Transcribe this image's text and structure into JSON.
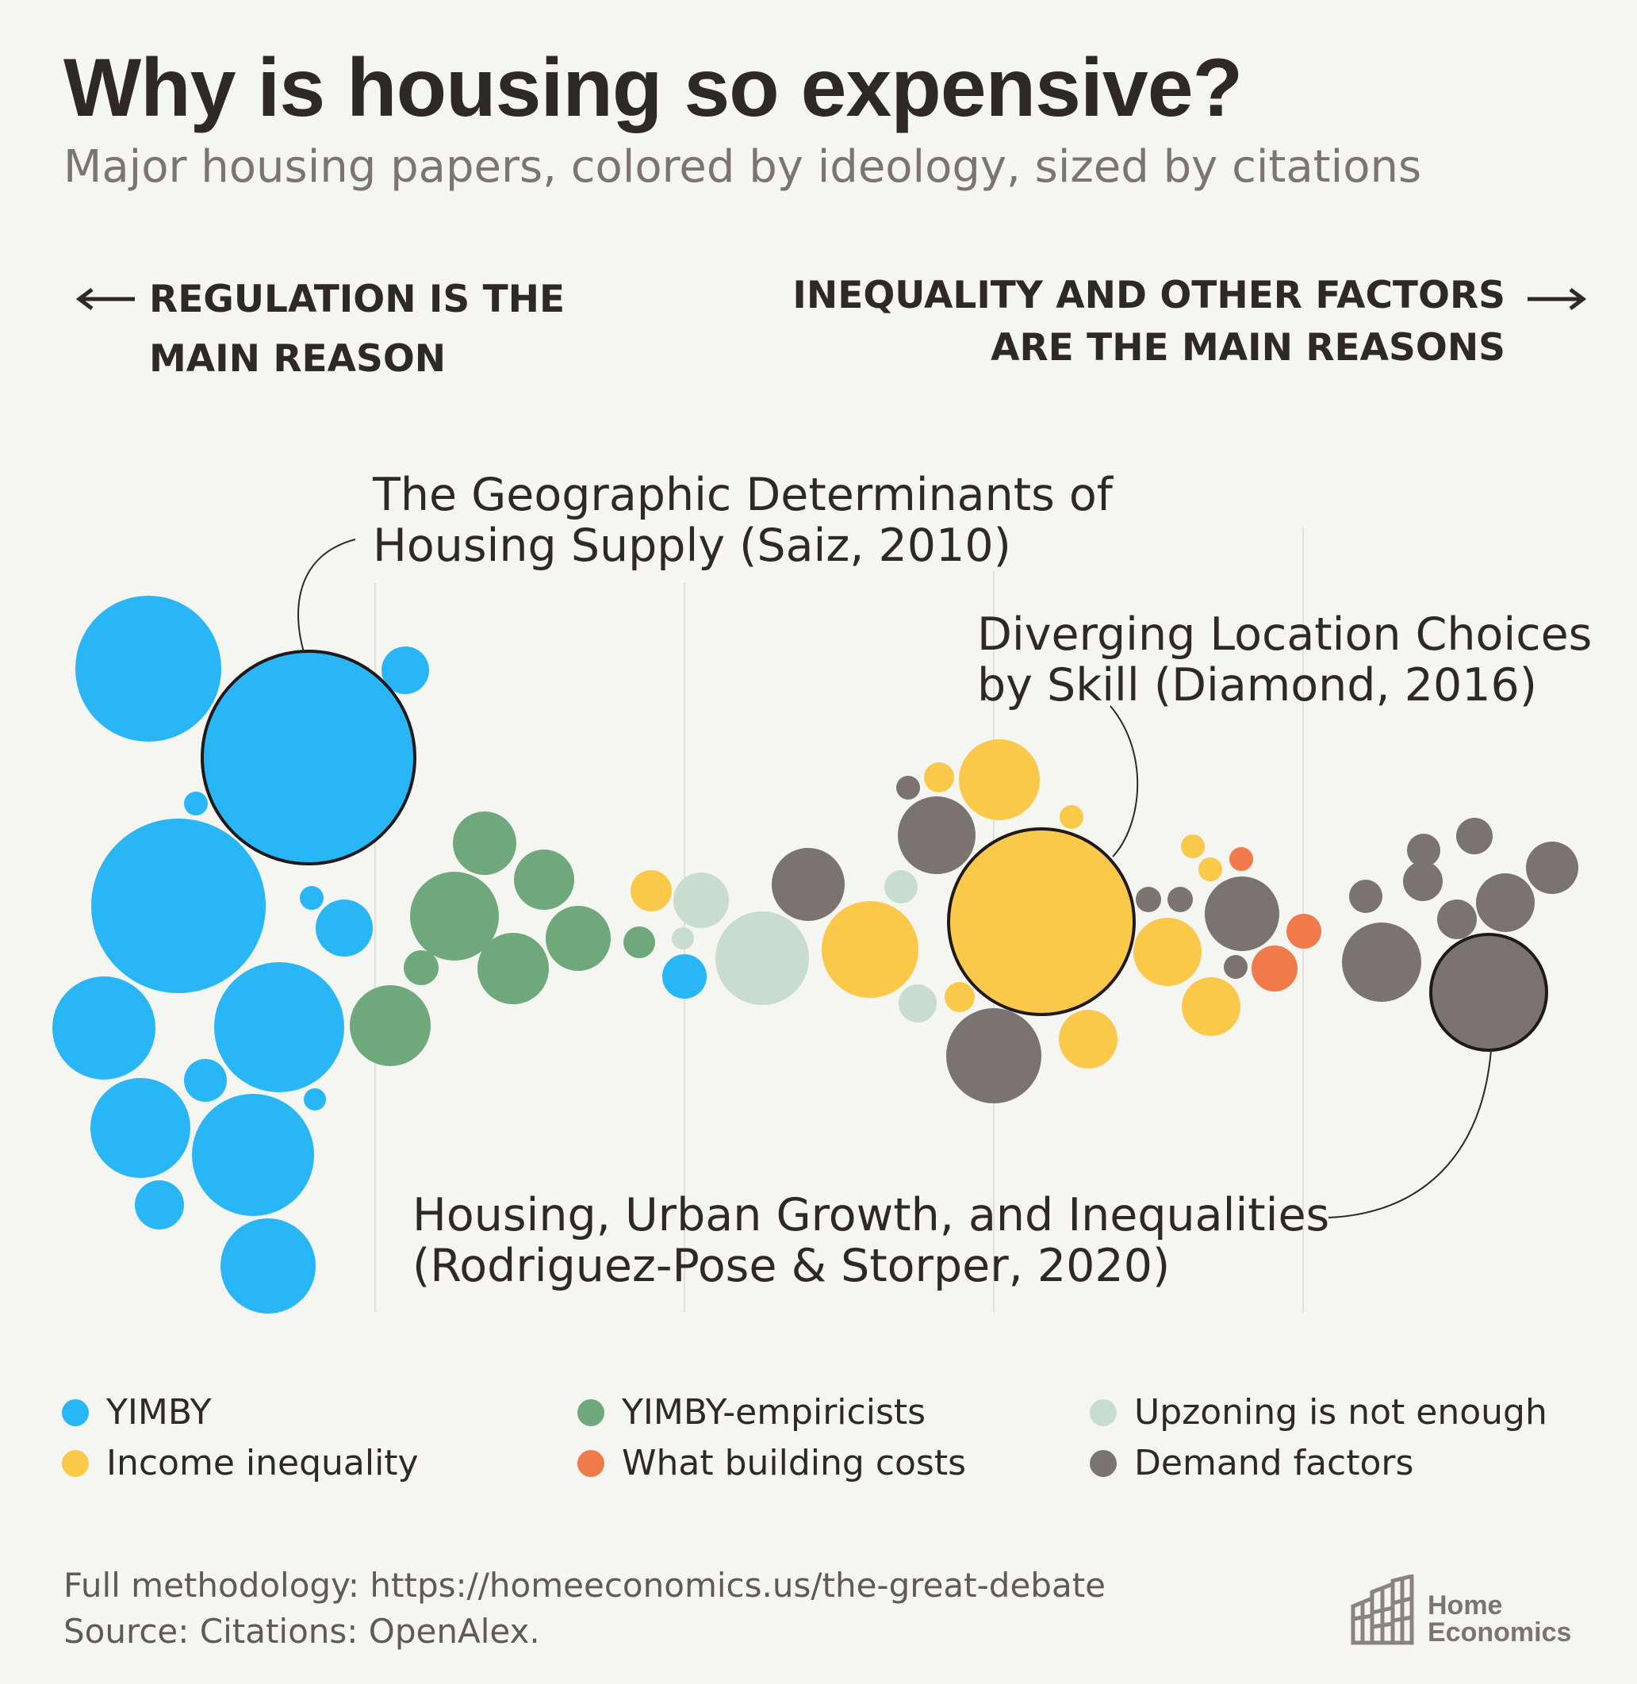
{
  "header": {
    "title": "Why is housing so expensive?",
    "subtitle": "Major housing papers, colored by ideology, sized by citations"
  },
  "axis": {
    "left_label_line1": "REGULATION IS THE",
    "left_label_line2": "MAIN REASON",
    "right_label_line1": "INEQUALITY AND OTHER FACTORS",
    "right_label_line2": "ARE THE MAIN REASONS"
  },
  "annotations": {
    "saiz_line1": "The Geographic Determinants of",
    "saiz_line2": "Housing Supply (Saiz, 2010)",
    "diamond_line1": "Diverging Location Choices",
    "diamond_line2": "by Skill (Diamond, 2016)",
    "rodriguez_line1": "Housing, Urban Growth, and Inequalities",
    "rodriguez_line2": "(Rodriguez-Pose & Storper, 2020)"
  },
  "legend": [
    {
      "label": "YIMBY",
      "color": "#29b6f6"
    },
    {
      "label": "Income inequality",
      "color": "#fbc94a"
    },
    {
      "label": "YIMBY-empiricists",
      "color": "#6fa87b"
    },
    {
      "label": "What building costs",
      "color": "#f07a4a"
    },
    {
      "label": "Upzoning is not enough",
      "color": "#c9ddcf"
    },
    {
      "label": "Demand factors",
      "color": "#7a7370"
    }
  ],
  "footer": {
    "line1": "Full methodology: https://homeeconomics.us/the-great-debate",
    "line2": "Source: Citations: OpenAlex."
  },
  "logo": {
    "line1": "Home",
    "line2": "Economics"
  },
  "chart_data": {
    "type": "scatter",
    "encoding": "packed bubbles; horizontal position = ideology (regulation → inequality/other factors), bubble size = citations",
    "title": "Why is housing so expensive?",
    "subtitle": "Major housing papers, colored by ideology, sized by citations",
    "series": [
      {
        "name": "YIMBY",
        "color": "#29b6f6",
        "values": [
          {
            "ideology": 0.06,
            "size": 95
          },
          {
            "ideology": 0.16,
            "size": 100,
            "highlight": true
          },
          {
            "ideology": 0.08,
            "size": 110
          },
          {
            "ideology": 0.04,
            "size": 60
          },
          {
            "ideology": 0.12,
            "size": 80
          },
          {
            "ideology": 0.05,
            "size": 60
          },
          {
            "ideology": 0.12,
            "size": 70
          },
          {
            "ideology": 0.13,
            "size": 60
          },
          {
            "ideology": 0.07,
            "size": 30
          },
          {
            "ideology": 0.17,
            "size": 30
          },
          {
            "ideology": 0.11,
            "size": 25
          },
          {
            "ideology": 0.2,
            "size": 20
          },
          {
            "ideology": 0.18,
            "size": 10
          },
          {
            "ideology": 0.16,
            "size": 10
          },
          {
            "ideology": 0.09,
            "size": 9
          },
          {
            "ideology": 0.38,
            "size": 20
          }
        ]
      },
      {
        "name": "YIMBY-empiricists",
        "color": "#6fa87b",
        "values": [
          {
            "ideology": 0.27,
            "size": 40
          },
          {
            "ideology": 0.28,
            "size": 40
          },
          {
            "ideology": 0.31,
            "size": 30
          },
          {
            "ideology": 0.33,
            "size": 30
          },
          {
            "ideology": 0.31,
            "size": 32
          },
          {
            "ideology": 0.35,
            "size": 32
          },
          {
            "ideology": 0.24,
            "size": 40
          },
          {
            "ideology": 0.25,
            "size": 8
          },
          {
            "ideology": 0.38,
            "size": 7
          }
        ]
      },
      {
        "name": "Upzoning is not enough",
        "color": "#c9ddcf",
        "values": [
          {
            "ideology": 0.43,
            "size": 55
          },
          {
            "ideology": 0.41,
            "size": 18
          },
          {
            "ideology": 0.4,
            "size": 4
          },
          {
            "ideology": 0.54,
            "size": 8
          },
          {
            "ideology": 0.55,
            "size": 10
          }
        ]
      },
      {
        "name": "Income inequality",
        "color": "#fbc94a",
        "values": [
          {
            "ideology": 0.63,
            "size": 160,
            "highlight": true
          },
          {
            "ideology": 0.53,
            "size": 60
          },
          {
            "ideology": 0.61,
            "size": 40
          },
          {
            "ideology": 0.71,
            "size": 30
          },
          {
            "ideology": 0.66,
            "size": 22
          },
          {
            "ideology": 0.74,
            "size": 22
          },
          {
            "ideology": 0.39,
            "size": 10
          },
          {
            "ideology": 0.57,
            "size": 7
          },
          {
            "ideology": 0.65,
            "size": 4
          },
          {
            "ideology": 0.73,
            "size": 4
          },
          {
            "ideology": 0.74,
            "size": 4
          },
          {
            "ideology": 0.58,
            "size": 6
          }
        ]
      },
      {
        "name": "What building costs",
        "color": "#f07a4a",
        "values": [
          {
            "ideology": 0.78,
            "size": 12
          },
          {
            "ideology": 0.8,
            "size": 7
          },
          {
            "ideology": 0.76,
            "size": 3
          }
        ]
      },
      {
        "name": "Demand factors",
        "color": "#7a7370",
        "values": [
          {
            "ideology": 0.91,
            "size": 85,
            "highlight": true
          },
          {
            "ideology": 0.61,
            "size": 55
          },
          {
            "ideology": 0.57,
            "size": 36
          },
          {
            "ideology": 0.49,
            "size": 32
          },
          {
            "ideology": 0.76,
            "size": 35
          },
          {
            "ideology": 0.84,
            "size": 38
          },
          {
            "ideology": 0.92,
            "size": 20
          },
          {
            "ideology": 0.95,
            "size": 16
          },
          {
            "ideology": 0.89,
            "size": 8
          },
          {
            "ideology": 0.89,
            "size": 8
          },
          {
            "ideology": 0.87,
            "size": 7
          },
          {
            "ideology": 0.83,
            "size": 6
          },
          {
            "ideology": 0.9,
            "size": 7
          },
          {
            "ideology": 0.7,
            "size": 3
          },
          {
            "ideology": 0.72,
            "size": 3
          },
          {
            "ideology": 0.75,
            "size": 2
          },
          {
            "ideology": 0.55,
            "size": 2
          }
        ]
      }
    ],
    "annotations": [
      "The Geographic Determinants of Housing Supply (Saiz, 2010)",
      "Diverging Location Choices by Skill (Diamond, 2016)",
      "Housing, Urban Growth, and Inequalities (Rodriguez-Pose & Storper, 2020)"
    ],
    "grid": true
  }
}
